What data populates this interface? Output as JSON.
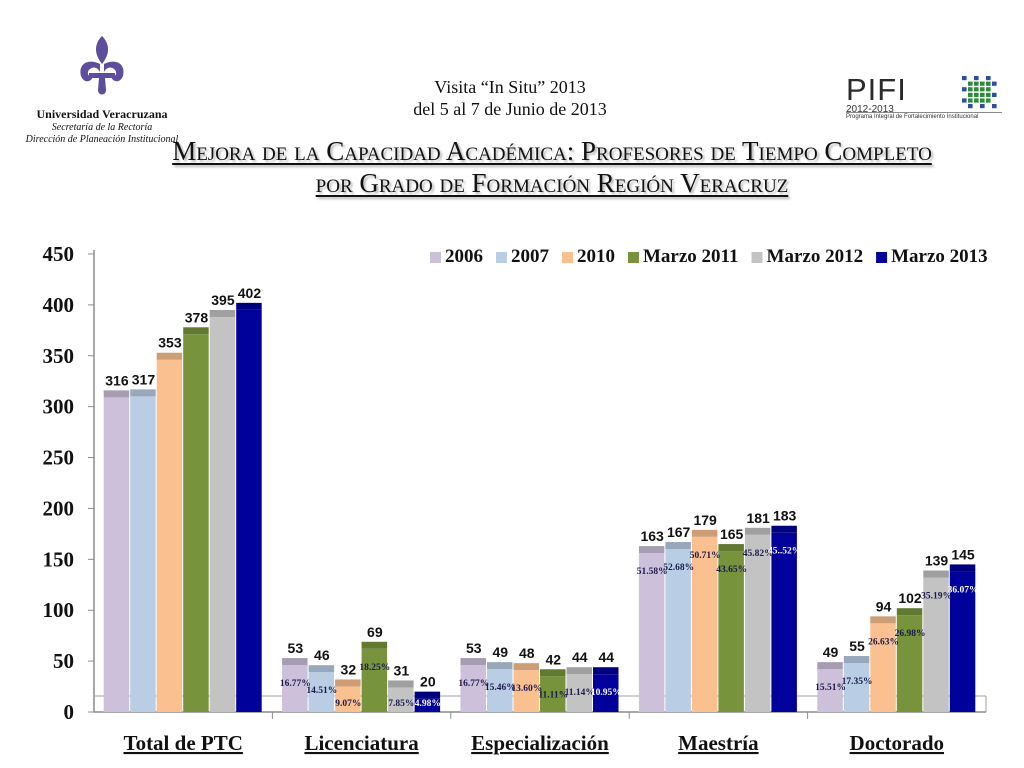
{
  "header": {
    "logo_left": {
      "name": "Universidad Veracruzana",
      "line1": "Secretaría de la Rectoría",
      "line2": "Dirección de Planeación Institucional"
    },
    "visit_line1": "Visita “In Situ”  2013",
    "visit_line2": "del 5 al 7 de Junio de 2013",
    "logo_right": {
      "word": "PIFI",
      "years": "2012-2013",
      "desc": "Programa Integral de Fortalecimiento Institucional"
    },
    "title_line1": "Mejora de la Capacidad Académica: Profesores de Tiempo Completo",
    "title_line2": "por Grado de Formación Región Veracruz"
  },
  "colors": {
    "logo_purple": "#5e4c9c",
    "pifi_green": "#2f8a3a",
    "pifi_blue": "#2b4fa3"
  },
  "chart_data": {
    "type": "bar",
    "categories": [
      "Total de PTC",
      "Licenciatura",
      "Especialización",
      "Maestría",
      "Doctorado"
    ],
    "ylim": [
      0,
      450
    ],
    "yticks": [
      0,
      50,
      100,
      150,
      200,
      250,
      300,
      350,
      400,
      450
    ],
    "grid": false,
    "legend_position": "top-right",
    "series": [
      {
        "name": "2006",
        "color": "#ccc0da",
        "values": [
          316,
          53,
          53,
          163,
          49
        ],
        "percents": [
          "",
          "16.77%",
          "16.77%",
          "51.58%",
          "15.51%"
        ]
      },
      {
        "name": "2007",
        "color": "#b9cde5",
        "values": [
          317,
          46,
          49,
          167,
          55
        ],
        "percents": [
          "",
          "14.51%",
          "15.46%",
          "52.68%",
          "17.35%"
        ]
      },
      {
        "name": "2010",
        "color": "#fac090",
        "values": [
          353,
          32,
          48,
          179,
          94
        ],
        "percents": [
          "",
          "9.07%",
          "13.60%",
          "50.71%",
          "26.63%"
        ]
      },
      {
        "name": "Marzo 2011",
        "color": "#77933c",
        "values": [
          378,
          69,
          42,
          165,
          102
        ],
        "percents": [
          "",
          "18.25%",
          "11.11%",
          "43.65%",
          "26.98%"
        ]
      },
      {
        "name": "Marzo 2012",
        "color": "#c3c3c3",
        "values": [
          395,
          31,
          44,
          181,
          139
        ],
        "percents": [
          "",
          "7.85%",
          "11.14%",
          "45.82%",
          "35.19%"
        ]
      },
      {
        "name": "Marzo 2013",
        "color": "#00009a",
        "values": [
          402,
          20,
          44,
          183,
          145
        ],
        "percents": [
          "",
          "4.98%",
          "10.95%",
          "45..52%",
          "36.07%"
        ]
      }
    ]
  }
}
